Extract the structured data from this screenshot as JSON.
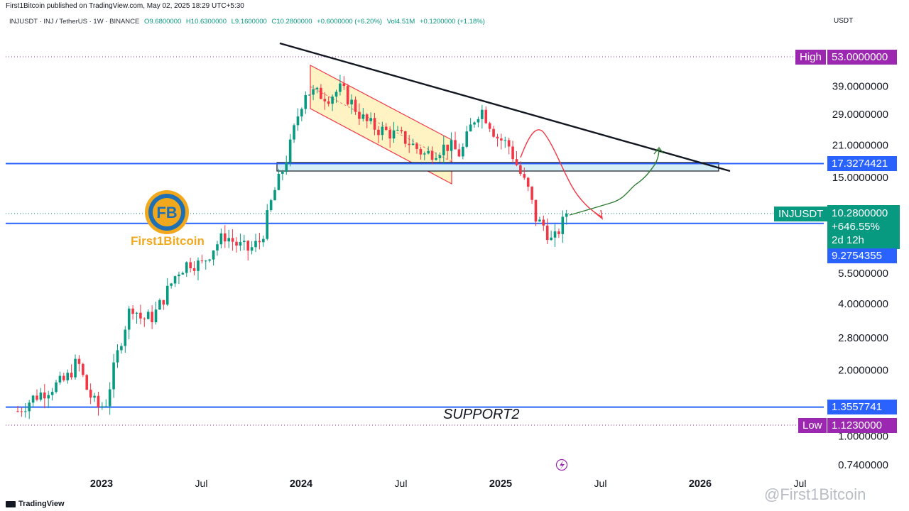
{
  "header": {
    "publisher": "First1Bitcoin published on TradingView.com, May 02, 2025 18:29 UTC+5:30",
    "symbol": "INJUSDT · INJ / TetherUS · 1W · BINANCE",
    "open": "O9.6800000",
    "high": "H10.6300000",
    "low": "L9.1600000",
    "close": "C10.2800000",
    "change": "+0.6000000 (+6.20%)",
    "volume": "Vol4.51M",
    "volume_change": "+0.1200000 (+1.18%)",
    "currency": "USDT"
  },
  "tags": {
    "high_label": "High",
    "high_value": "53.0000000",
    "low_label": "Low",
    "low_value": "1.1230000",
    "level_upper": "17.3274421",
    "level_mid": "9.2754355",
    "level_support": "1.3557741",
    "ticker": "INJUSDT",
    "price": "10.2800000",
    "pct": "+646.55%",
    "countdown": "2d 12h"
  },
  "annotations": {
    "support": "SUPPORT2",
    "logo_text": "First1Bitcoin",
    "watermark": "@First1Bitcoin"
  },
  "footer": {
    "brand": "TradingView"
  },
  "colors": {
    "up": "#089981",
    "down": "#f23645",
    "level": "#2962ff",
    "high_low_tag": "#9c27b0",
    "price_tag": "#089981",
    "trend": "#131722",
    "channel_fill": "#fff3c4",
    "zone_fill": "#d6eef5"
  },
  "chart_data": {
    "type": "candlestick",
    "title": "INJUSDT · INJ / TetherUS · 1W · BINANCE",
    "yscale": "log",
    "ylim": [
      0.65,
      68
    ],
    "x_ticks": [
      {
        "label": "2023",
        "t": 2023.0,
        "bold": true
      },
      {
        "label": "Jul",
        "t": 2023.5,
        "bold": false
      },
      {
        "label": "2024",
        "t": 2024.0,
        "bold": true
      },
      {
        "label": "Jul",
        "t": 2024.5,
        "bold": false
      },
      {
        "label": "2025",
        "t": 2025.0,
        "bold": true
      },
      {
        "label": "Jul",
        "t": 2025.5,
        "bold": false
      },
      {
        "label": "2026",
        "t": 2026.0,
        "bold": true
      },
      {
        "label": "Jul",
        "t": 2026.5,
        "bold": false
      }
    ],
    "y_ticks": [
      {
        "label": "39.0000000",
        "v": 39
      },
      {
        "label": "29.0000000",
        "v": 29
      },
      {
        "label": "21.0000000",
        "v": 21
      },
      {
        "label": "15.0000000",
        "v": 15
      },
      {
        "label": "5.5000000",
        "v": 5.5
      },
      {
        "label": "4.0000000",
        "v": 4.0
      },
      {
        "label": "2.8000000",
        "v": 2.8
      },
      {
        "label": "2.0000000",
        "v": 2.0
      },
      {
        "label": "1.0000000",
        "v": 1.0
      },
      {
        "label": "0.7400000",
        "v": 0.74
      }
    ],
    "price_path": [
      [
        2022.58,
        1.3
      ],
      [
        2022.66,
        1.5
      ],
      [
        2022.74,
        1.65
      ],
      [
        2022.82,
        1.8
      ],
      [
        2022.88,
        2.2
      ],
      [
        2022.93,
        1.6
      ],
      [
        2022.98,
        1.35
      ],
      [
        2023.02,
        1.4
      ],
      [
        2023.06,
        2.0
      ],
      [
        2023.1,
        2.8
      ],
      [
        2023.15,
        4.0
      ],
      [
        2023.2,
        3.4
      ],
      [
        2023.26,
        3.5
      ],
      [
        2023.32,
        4.4
      ],
      [
        2023.38,
        5.6
      ],
      [
        2023.44,
        6.2
      ],
      [
        2023.5,
        6.0
      ],
      [
        2023.56,
        7.2
      ],
      [
        2023.62,
        8.2
      ],
      [
        2023.68,
        7.4
      ],
      [
        2023.74,
        7.0
      ],
      [
        2023.8,
        7.8
      ],
      [
        2023.86,
        12.5
      ],
      [
        2023.9,
        15.5
      ],
      [
        2023.94,
        20.0
      ],
      [
        2023.98,
        28.0
      ],
      [
        2024.02,
        37.0
      ],
      [
        2024.08,
        36.0
      ],
      [
        2024.14,
        35.0
      ],
      [
        2024.2,
        38.0
      ],
      [
        2024.26,
        32.0
      ],
      [
        2024.32,
        27.0
      ],
      [
        2024.38,
        25.0
      ],
      [
        2024.44,
        24.0
      ],
      [
        2024.5,
        23.0
      ],
      [
        2024.56,
        21.0
      ],
      [
        2024.62,
        19.0
      ],
      [
        2024.68,
        20.0
      ],
      [
        2024.74,
        21.0
      ],
      [
        2024.8,
        19.0
      ],
      [
        2024.86,
        27.0
      ],
      [
        2024.9,
        31.0
      ],
      [
        2024.94,
        27.0
      ],
      [
        2024.98,
        23.0
      ],
      [
        2025.04,
        21.0
      ],
      [
        2025.1,
        15.5
      ],
      [
        2025.14,
        13.0
      ],
      [
        2025.18,
        9.5
      ],
      [
        2025.22,
        9.0
      ],
      [
        2025.26,
        7.5
      ],
      [
        2025.3,
        9.0
      ],
      [
        2025.34,
        10.28
      ]
    ],
    "levels": [
      {
        "name": "upper",
        "v": 17.3274421
      },
      {
        "name": "mid",
        "v": 9.2754355
      },
      {
        "name": "support",
        "v": 1.3557741
      }
    ],
    "high": 53.0,
    "low": 1.123,
    "last_price": 10.28,
    "last_change_pct": 646.55
  }
}
